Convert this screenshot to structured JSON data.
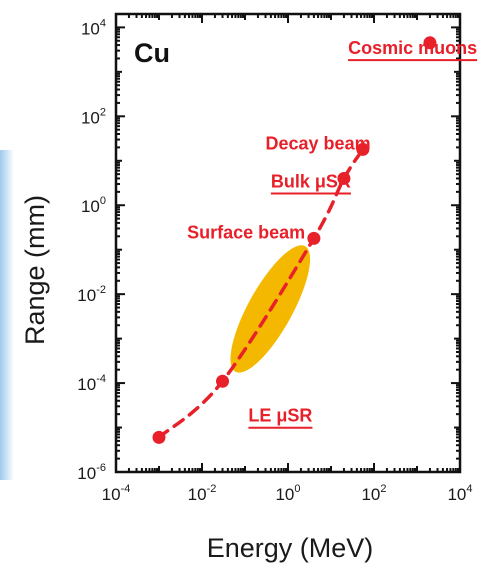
{
  "chart_data": {
    "type": "scatter",
    "panel_label": "Cu",
    "xlabel": "Energy (MeV)",
    "ylabel": "Range (mm)",
    "x_scale": "log",
    "y_scale": "log",
    "xlim": [
      0.0001,
      10000
    ],
    "ylim": [
      1e-06,
      20000
    ],
    "x_ticks": [
      {
        "base": "10",
        "exp": "-4",
        "value": 0.0001
      },
      {
        "base": "10",
        "exp": "-2",
        "value": 0.01
      },
      {
        "base": "10",
        "exp": "0",
        "value": 1
      },
      {
        "base": "10",
        "exp": "2",
        "value": 100
      },
      {
        "base": "10",
        "exp": "4",
        "value": 10000
      }
    ],
    "y_ticks": [
      {
        "base": "10",
        "exp": "-6",
        "value": 1e-06
      },
      {
        "base": "10",
        "exp": "-4",
        "value": 0.0001
      },
      {
        "base": "10",
        "exp": "-2",
        "value": 0.01
      },
      {
        "base": "10",
        "exp": "0",
        "value": 1
      },
      {
        "base": "10",
        "exp": "2",
        "value": 100
      },
      {
        "base": "10",
        "exp": "4",
        "value": 10000
      }
    ],
    "series": [
      {
        "color": "#e8202a",
        "style": "dashed-line-with-markers",
        "points": [
          {
            "x": 0.001,
            "y": 6e-06
          },
          {
            "x": 0.03,
            "y": 0.00011
          },
          {
            "x": 4,
            "y": 0.18
          },
          {
            "x": 20,
            "y": 4
          },
          {
            "x": 55,
            "y": 18
          }
        ]
      },
      {
        "color": "#e8202a",
        "style": "marker",
        "points": [
          {
            "x": 2000,
            "y": 4500
          }
        ]
      }
    ],
    "region": {
      "color": "#f5b800",
      "shape": "ellipse",
      "from": {
        "x": 0.06,
        "y": 0.00018
      },
      "to": {
        "x": 2.5,
        "y": 0.12
      }
    },
    "annotations": [
      {
        "text": "Cosmic muons",
        "underline": true,
        "x": 25,
        "y": 2500
      },
      {
        "text": "Decay beam",
        "underline": false,
        "x": 0.3,
        "y": 18
      },
      {
        "text": "Bulk μSR",
        "underline": true,
        "x": 0.4,
        "y": 2.5
      },
      {
        "text": "Surface beam",
        "underline": false,
        "x": 0.0045,
        "y": 0.18
      },
      {
        "text": "LE μSR",
        "underline": true,
        "x": 0.12,
        "y": 1.35e-05
      }
    ],
    "grid": false,
    "legend": "none"
  }
}
